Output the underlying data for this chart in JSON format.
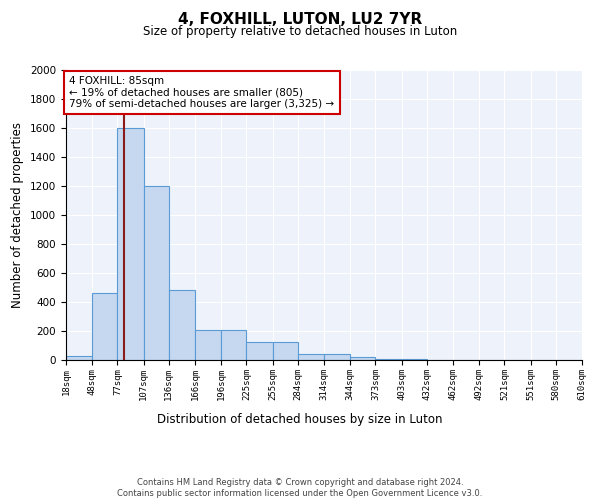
{
  "title": "4, FOXHILL, LUTON, LU2 7YR",
  "subtitle": "Size of property relative to detached houses in Luton",
  "xlabel": "Distribution of detached houses by size in Luton",
  "ylabel": "Number of detached properties",
  "bin_edges": [
    18,
    48,
    77,
    107,
    136,
    166,
    196,
    225,
    255,
    284,
    314,
    344,
    373,
    403,
    432,
    462,
    492,
    521,
    551,
    580,
    610
  ],
  "bar_heights": [
    30,
    460,
    1600,
    1200,
    480,
    210,
    210,
    125,
    125,
    40,
    40,
    20,
    10,
    5,
    3,
    2,
    1,
    1,
    0,
    0
  ],
  "bar_color": "#c5d8f0",
  "bar_edge_color": "#5b9bd5",
  "vertical_line_x": 85,
  "vertical_line_color": "#8b1a1a",
  "annotation_text": "4 FOXHILL: 85sqm\n← 19% of detached houses are smaller (805)\n79% of semi-detached houses are larger (3,325) →",
  "annotation_box_color": "#cc0000",
  "ylim": [
    0,
    2000
  ],
  "yticks": [
    0,
    200,
    400,
    600,
    800,
    1000,
    1200,
    1400,
    1600,
    1800,
    2000
  ],
  "footer_text": "Contains HM Land Registry data © Crown copyright and database right 2024.\nContains public sector information licensed under the Open Government Licence v3.0.",
  "bg_color": "#eef2fa",
  "grid_color": "#ffffff"
}
